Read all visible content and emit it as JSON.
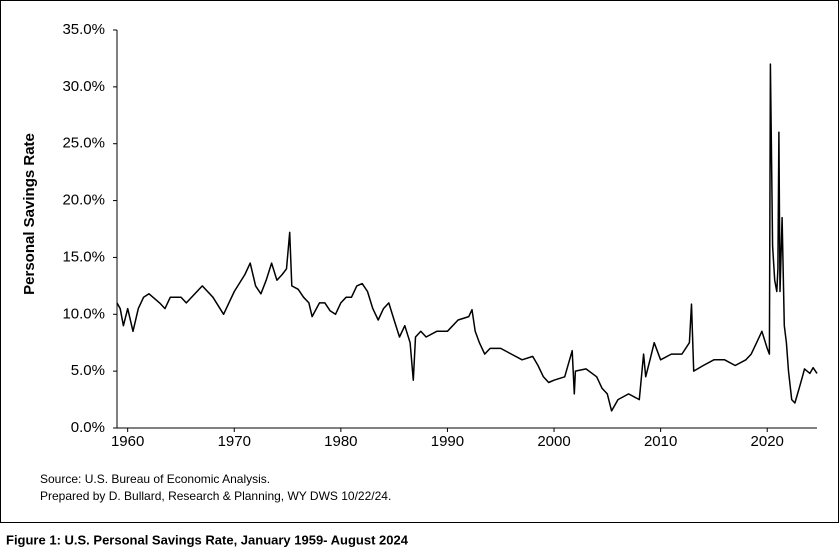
{
  "chart_data": {
    "type": "line",
    "y_label": "Personal Savings Rate",
    "source": "Source: U.S. Bureau of Economic Analysis.",
    "prepared": "Prepared by D. Bullard, Research & Planning, WY DWS 10/22/24.",
    "caption": "Figure 1: U.S. Personal Savings Rate, January 1959- August 2024",
    "xlim": [
      1959,
      2024.67
    ],
    "xticks": [
      1960,
      1970,
      1980,
      1990,
      2000,
      2010,
      2020
    ],
    "ylim": [
      0,
      35
    ],
    "yticks": [
      {
        "value": 0,
        "label": "0.0%"
      },
      {
        "value": 5,
        "label": "5.0%"
      },
      {
        "value": 10,
        "label": "10.0%"
      },
      {
        "value": 15,
        "label": "15.0%"
      },
      {
        "value": 20,
        "label": "20.0%"
      },
      {
        "value": 25,
        "label": "25.0%"
      },
      {
        "value": 30,
        "label": "30.0%"
      },
      {
        "value": 35,
        "label": "35.0%"
      }
    ],
    "series": [
      {
        "color": "#000000",
        "x": [
          1959,
          1959.3,
          1959.6,
          1960,
          1960.5,
          1961,
          1961.5,
          1962,
          1963,
          1963.5,
          1964,
          1965,
          1965.5,
          1966,
          1967,
          1968,
          1969,
          1969.5,
          1970,
          1971,
          1971.5,
          1972,
          1972.5,
          1973,
          1973.5,
          1974,
          1974.5,
          1974.9,
          1975.2,
          1975.4,
          1976,
          1976.5,
          1977,
          1977.3,
          1978,
          1978.5,
          1979,
          1979.5,
          1980,
          1980.5,
          1981,
          1981.5,
          1982,
          1982.5,
          1983,
          1983.5,
          1984,
          1984.5,
          1985,
          1985.5,
          1986,
          1986.5,
          1986.8,
          1987,
          1987.5,
          1988,
          1989,
          1990,
          1991,
          1992,
          1992.3,
          1992.6,
          1993,
          1993.5,
          1994,
          1995,
          1996,
          1997,
          1998,
          1998.5,
          1999,
          1999.5,
          2000,
          2001,
          2001.7,
          2001.9,
          2002,
          2003,
          2004,
          2004.5,
          2005,
          2005.4,
          2006,
          2007,
          2008,
          2008.4,
          2008.6,
          2009,
          2009.4,
          2010,
          2011,
          2012,
          2012.7,
          2012.9,
          2013.1,
          2014,
          2015,
          2016,
          2017,
          2018,
          2018.5,
          2019,
          2019.5,
          2020,
          2020.2,
          2020.3,
          2020.5,
          2020.7,
          2020.9,
          2021,
          2021.1,
          2021.2,
          2021.4,
          2021.6,
          2021.8,
          2022,
          2022.3,
          2022.6,
          2023,
          2023.3,
          2023.5,
          2024,
          2024.3,
          2024.67
        ],
        "values": [
          11,
          10.5,
          9,
          10.5,
          8.5,
          10.5,
          11.5,
          11.8,
          11,
          10.5,
          11.5,
          11.5,
          11,
          11.5,
          12.5,
          11.5,
          10,
          11,
          12,
          13.5,
          14.5,
          12.5,
          11.8,
          13,
          14.5,
          13,
          13.5,
          14,
          17.2,
          12.5,
          12.2,
          11.5,
          11,
          9.8,
          11,
          11,
          10.3,
          10,
          11,
          11.5,
          11.5,
          12.5,
          12.7,
          12,
          10.5,
          9.5,
          10.5,
          11,
          9.5,
          8,
          9,
          7.5,
          4.2,
          8,
          8.5,
          8,
          8.5,
          8.5,
          9.5,
          9.8,
          10.4,
          8.5,
          7.5,
          6.5,
          7,
          7,
          6.5,
          6,
          6.3,
          5.5,
          4.5,
          4,
          4.2,
          4.5,
          6.8,
          3,
          5,
          5.2,
          4.5,
          3.5,
          3,
          1.5,
          2.5,
          3,
          2.5,
          6.5,
          4.5,
          6,
          7.5,
          6,
          6.5,
          6.5,
          7.5,
          10.9,
          5,
          5.5,
          6,
          6,
          5.5,
          6,
          6.5,
          7.5,
          8.5,
          7,
          6.5,
          32,
          16,
          13,
          12,
          14,
          26,
          12,
          18.5,
          9,
          7.5,
          5,
          2.5,
          2.2,
          3.5,
          4.5,
          5.2,
          4.8,
          5.3,
          4.8
        ]
      }
    ]
  }
}
